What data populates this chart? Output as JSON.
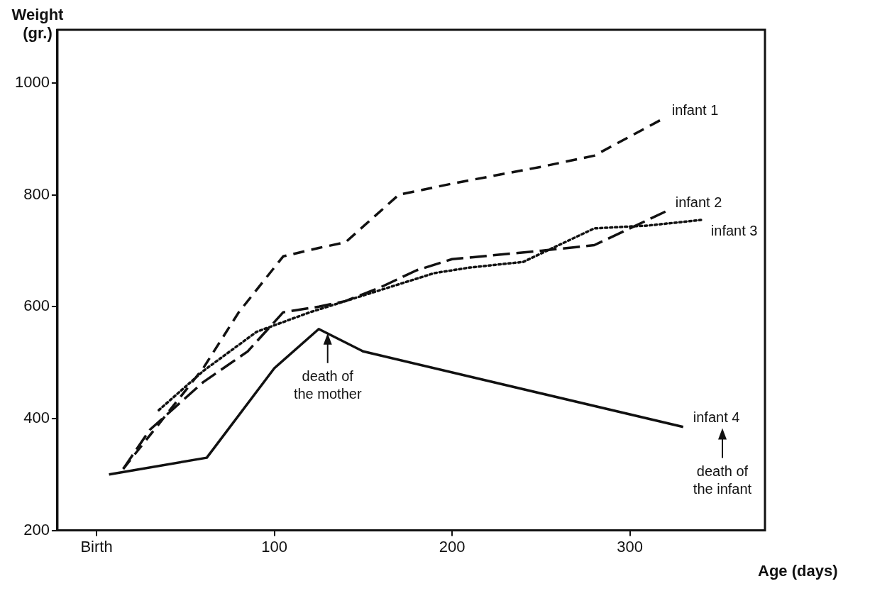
{
  "chart_data": {
    "type": "line",
    "xlabel": "Age (days)",
    "ylabel": "Weight (gr.)",
    "xlim": [
      -22,
      376
    ],
    "xticks": [
      {
        "value": 0,
        "label": "Birth"
      },
      100,
      200,
      300
    ],
    "ylim": [
      200,
      1095
    ],
    "yticks": [
      200,
      400,
      600,
      800,
      1000
    ],
    "grid": false,
    "legend": false,
    "marker": "none",
    "series": [
      {
        "name": "infant 1",
        "color": "#111111",
        "line_style": "dashed",
        "x": [
          15,
          60,
          80,
          105,
          125,
          140,
          170,
          200,
          250,
          280,
          318
        ],
        "values": [
          310,
          490,
          590,
          690,
          705,
          715,
          800,
          820,
          850,
          870,
          935
        ]
      },
      {
        "name": "infant 2",
        "color": "#111111",
        "line_style": "dashed",
        "x": [
          15,
          30,
          60,
          85,
          105,
          125,
          140,
          160,
          180,
          200,
          250,
          280,
          300,
          320
        ],
        "values": [
          310,
          380,
          465,
          520,
          590,
          600,
          610,
          635,
          665,
          685,
          700,
          710,
          740,
          770
        ]
      },
      {
        "name": "infant 3",
        "color": "#111111",
        "line_style": "dotted",
        "x": [
          35,
          60,
          90,
          120,
          140,
          160,
          190,
          210,
          240,
          280,
          310,
          340
        ],
        "values": [
          415,
          485,
          555,
          590,
          610,
          630,
          660,
          670,
          680,
          740,
          745,
          755
        ]
      },
      {
        "name": "infant 4",
        "color": "#111111",
        "line_style": "solid",
        "x": [
          7,
          62,
          100,
          125,
          150,
          330
        ],
        "values": [
          300,
          330,
          490,
          560,
          520,
          385
        ]
      }
    ],
    "annotations": [
      {
        "text": "death of the mother",
        "x": 130,
        "y": 560
      },
      "death of the infant"
    ]
  }
}
